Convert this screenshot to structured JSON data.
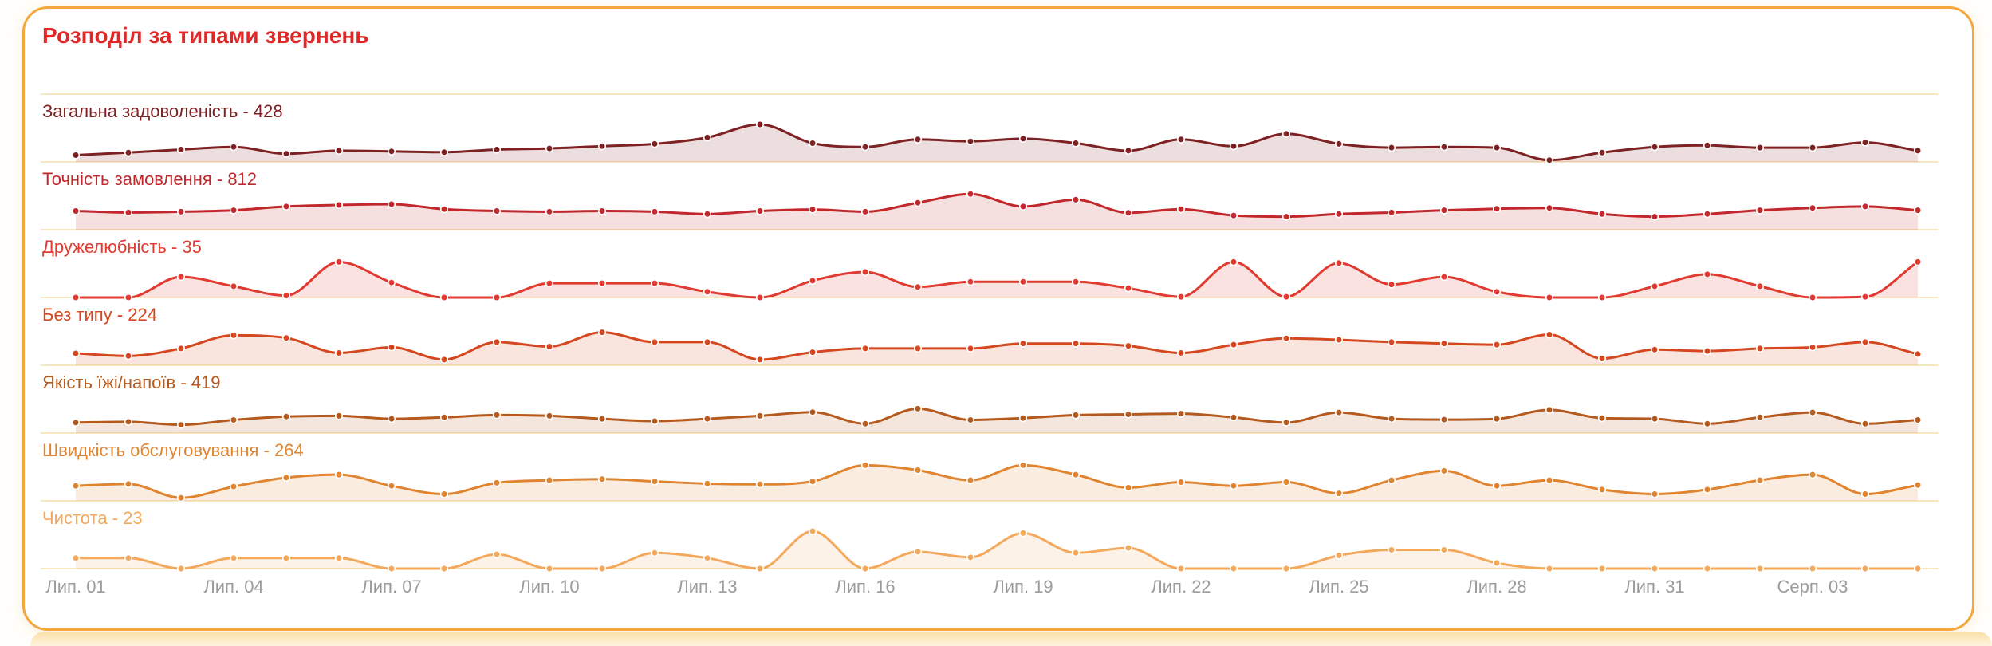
{
  "page": {
    "title": "Розподіл за типами звернень"
  },
  "chart_data": {
    "type": "area",
    "title": "Розподіл за типами звернень",
    "layout": "ridgeline, 7 stacked daily sparklines with dots, shared x axis, no y axis, grid off",
    "x_unit": "day",
    "n_points": 36,
    "x_tick_every": 3,
    "x_tick_labels": [
      "Лип. 01",
      "Лип. 04",
      "Лип. 07",
      "Лип. 10",
      "Лип. 13",
      "Лип. 16",
      "Лип. 19",
      "Лип. 22",
      "Лип. 25",
      "Лип. 28",
      "Лип. 31",
      "Серп. 03"
    ],
    "value_scale": "relative height 0-100 within each row",
    "colors": {
      "title": "#e02828",
      "axis_text": "#9c9c9c",
      "separator": "#f6e0ae",
      "card_border": "#f3a73d"
    },
    "series": [
      {
        "label": "Загальна задоволеність",
        "total": 428,
        "color": "#7d2123",
        "values": [
          18,
          25,
          33,
          40,
          22,
          30,
          28,
          26,
          33,
          36,
          42,
          48,
          65,
          100,
          50,
          40,
          60,
          55,
          62,
          50,
          30,
          60,
          42,
          75,
          48,
          38,
          40,
          38,
          5,
          25,
          40,
          44,
          38,
          38,
          52,
          30
        ]
      },
      {
        "label": "Точність замовлення",
        "total": 812,
        "color": "#c2272b",
        "values": [
          50,
          46,
          48,
          52,
          62,
          66,
          68,
          55,
          50,
          48,
          50,
          48,
          42,
          50,
          54,
          48,
          72,
          95,
          62,
          80,
          45,
          55,
          38,
          35,
          42,
          46,
          52,
          56,
          58,
          42,
          35,
          42,
          52,
          58,
          62,
          52
        ]
      },
      {
        "label": "Дружелюбність",
        "total": 35,
        "color": "#e03a31",
        "values": [
          0,
          0,
          55,
          30,
          5,
          95,
          40,
          0,
          0,
          38,
          38,
          38,
          15,
          0,
          45,
          68,
          28,
          42,
          42,
          42,
          25,
          2,
          95,
          2,
          92,
          35,
          55,
          15,
          0,
          0,
          30,
          62,
          30,
          0,
          2,
          95
        ]
      },
      {
        "label": "Без типу",
        "total": 224,
        "color": "#d4471f",
        "values": [
          32,
          25,
          45,
          80,
          73,
          33,
          48,
          15,
          62,
          50,
          88,
          62,
          62,
          15,
          35,
          45,
          45,
          45,
          58,
          58,
          52,
          33,
          55,
          72,
          68,
          62,
          58,
          55,
          82,
          18,
          42,
          38,
          45,
          48,
          62,
          30
        ]
      },
      {
        "label": "Якість їжі/напоїв",
        "total": 419,
        "color": "#b55a1e",
        "values": [
          28,
          30,
          22,
          35,
          44,
          46,
          38,
          42,
          48,
          46,
          38,
          32,
          38,
          46,
          56,
          25,
          65,
          35,
          40,
          48,
          50,
          52,
          42,
          28,
          55,
          38,
          36,
          38,
          62,
          40,
          38,
          25,
          42,
          55,
          25,
          35
        ]
      },
      {
        "label": "Швидкість обслуговування",
        "total": 264,
        "color": "#e08430",
        "values": [
          40,
          45,
          8,
          38,
          62,
          70,
          40,
          18,
          48,
          55,
          58,
          52,
          46,
          44,
          52,
          95,
          82,
          55,
          95,
          70,
          35,
          50,
          40,
          50,
          20,
          55,
          80,
          40,
          55,
          30,
          18,
          30,
          55,
          70,
          18,
          42
        ]
      },
      {
        "label": "Чистота",
        "total": 23,
        "color": "#f3a85b",
        "values": [
          28,
          28,
          0,
          28,
          28,
          28,
          0,
          0,
          38,
          0,
          0,
          42,
          28,
          0,
          100,
          0,
          45,
          30,
          95,
          42,
          55,
          0,
          0,
          0,
          35,
          50,
          50,
          15,
          0,
          0,
          0,
          0,
          0,
          0,
          0,
          0
        ]
      }
    ]
  }
}
